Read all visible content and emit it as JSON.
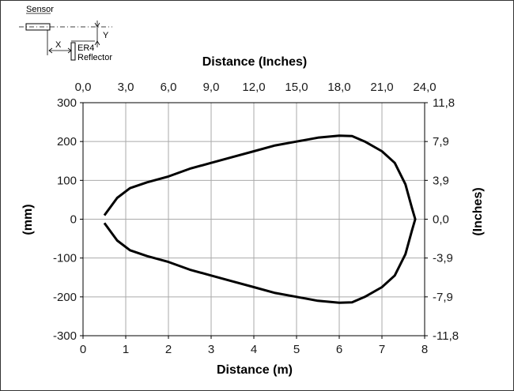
{
  "chart_data": {
    "type": "line",
    "title": "",
    "xlabel": "Distance (m)",
    "ylabel": "(mm)",
    "x2label": "Distance (Inches)",
    "y2label": "(Inches)",
    "xlim": [
      0,
      8
    ],
    "ylim": [
      -300,
      300
    ],
    "grid": true,
    "x_ticks": [
      "0",
      "1",
      "2",
      "3",
      "4",
      "5",
      "6",
      "7",
      "8"
    ],
    "y_ticks": [
      "300",
      "200",
      "100",
      "0",
      "-100",
      "-200",
      "-300"
    ],
    "x2_ticks": [
      "0,0",
      "3,0",
      "6,0",
      "9,0",
      "12,0",
      "15,0",
      "18,0",
      "21,0",
      "24,0"
    ],
    "y2_ticks": [
      "11,8",
      "7,9",
      "3,9",
      "0,0",
      "-3,9",
      "-7,9",
      "-11,8"
    ],
    "series": [
      {
        "points": [
          [
            0.5,
            10
          ],
          [
            0.8,
            55
          ],
          [
            1.1,
            80
          ],
          [
            1.5,
            95
          ],
          [
            2.0,
            110
          ],
          [
            2.5,
            130
          ],
          [
            3.0,
            145
          ],
          [
            3.5,
            160
          ],
          [
            4.0,
            175
          ],
          [
            4.5,
            190
          ],
          [
            5.0,
            200
          ],
          [
            5.5,
            210
          ],
          [
            6.0,
            215
          ],
          [
            6.3,
            214
          ],
          [
            6.6,
            200
          ],
          [
            7.0,
            175
          ],
          [
            7.3,
            145
          ],
          [
            7.55,
            90
          ],
          [
            7.7,
            30
          ],
          [
            7.78,
            0
          ],
          [
            7.7,
            -30
          ],
          [
            7.55,
            -90
          ],
          [
            7.3,
            -145
          ],
          [
            7.0,
            -175
          ],
          [
            6.6,
            -200
          ],
          [
            6.3,
            -214
          ],
          [
            6.0,
            -215
          ],
          [
            5.5,
            -210
          ],
          [
            5.0,
            -200
          ],
          [
            4.5,
            -190
          ],
          [
            4.0,
            -175
          ],
          [
            3.5,
            -160
          ],
          [
            3.0,
            -145
          ],
          [
            2.5,
            -130
          ],
          [
            2.0,
            -110
          ],
          [
            1.5,
            -95
          ],
          [
            1.1,
            -80
          ],
          [
            0.8,
            -55
          ],
          [
            0.5,
            -10
          ]
        ]
      }
    ],
    "color": "#000000"
  },
  "legend_diagram": {
    "sensor_label": "Sensor",
    "x_label": "X",
    "y_label": "Y",
    "reflector_label_1": "ER4",
    "reflector_label_2": "Reflector"
  }
}
